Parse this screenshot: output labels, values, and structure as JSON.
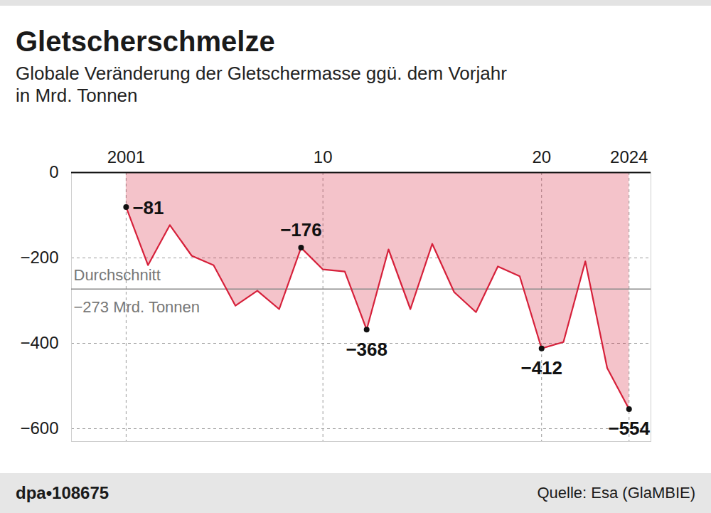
{
  "chart_data": {
    "type": "area",
    "title": "Gletscherschmelze",
    "subtitle": "Globale Veränderung der Gletschermasse ggü. dem Vorjahr\nin Mrd. Tonnen",
    "source": "Quelle: Esa (GlaMBIE)",
    "credit": "dpa•108675",
    "x": [
      2001,
      2002,
      2003,
      2004,
      2005,
      2006,
      2007,
      2008,
      2009,
      2010,
      2011,
      2012,
      2013,
      2014,
      2015,
      2016,
      2017,
      2018,
      2019,
      2020,
      2021,
      2022,
      2023,
      2024
    ],
    "values": [
      -81,
      -217,
      -123,
      -195,
      -217,
      -312,
      -277,
      -320,
      -176,
      -227,
      -232,
      -368,
      -180,
      -320,
      -167,
      -280,
      -327,
      -220,
      -243,
      -412,
      -397,
      -208,
      -458,
      -554
    ],
    "value_labels": [
      "−81",
      null,
      null,
      null,
      null,
      null,
      null,
      null,
      "−176",
      null,
      null,
      "−368",
      null,
      null,
      null,
      null,
      null,
      null,
      null,
      "−412",
      null,
      null,
      null,
      "−554"
    ],
    "data_labels": true,
    "color": "#d6203a",
    "xlim": [
      1998.5,
      2025
    ],
    "xticks": [
      2001,
      {
        "value": 2010,
        "label": "10"
      },
      {
        "value": 2020,
        "label": "20"
      },
      2024
    ],
    "ylim": [
      -630,
      0
    ],
    "yticks": [
      0,
      {
        "value": -200,
        "label": "−200"
      },
      {
        "value": -400,
        "label": "−400"
      },
      {
        "value": -600,
        "label": "−600"
      }
    ],
    "grid": true,
    "reference_line": {
      "value": -273,
      "label": "Durchschnitt",
      "value_label": "−273 Mrd. Tonnen"
    }
  }
}
